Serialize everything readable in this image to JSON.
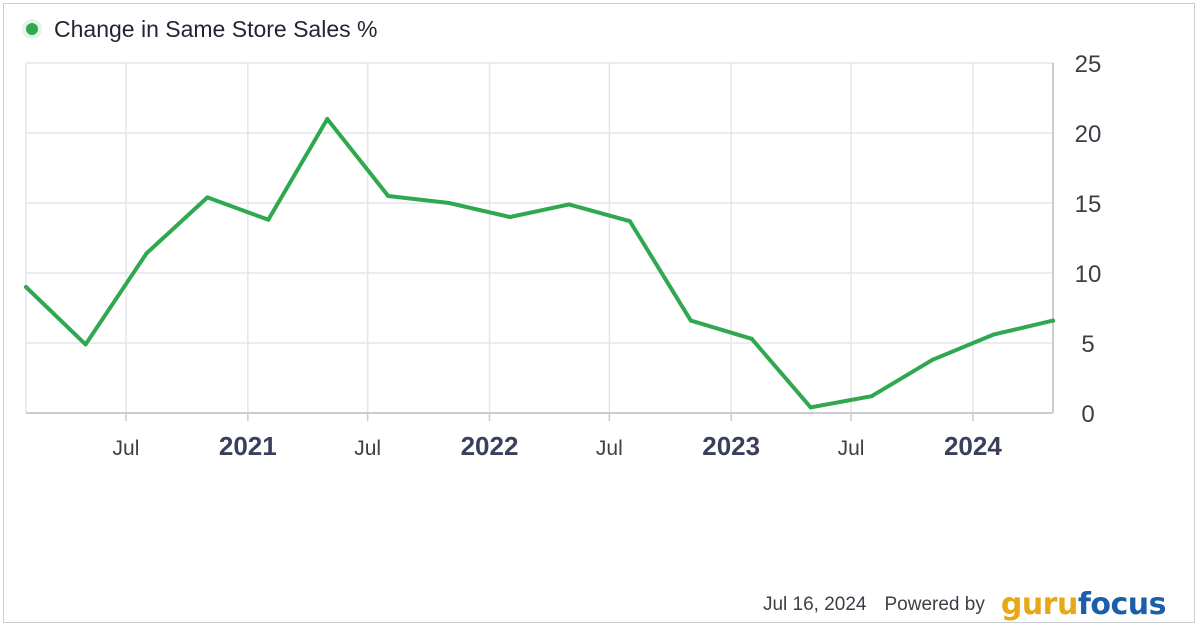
{
  "chart_data": {
    "type": "line",
    "series": [
      {
        "name": "Change in Same Store Sales %",
        "color": "#2fa84f",
        "points": [
          {
            "x": "2020-02-01",
            "y": 9.0
          },
          {
            "x": "2020-05-01",
            "y": 4.9
          },
          {
            "x": "2020-08-01",
            "y": 11.4
          },
          {
            "x": "2020-11-01",
            "y": 15.4
          },
          {
            "x": "2021-02-01",
            "y": 13.8
          },
          {
            "x": "2021-05-01",
            "y": 21.0
          },
          {
            "x": "2021-08-01",
            "y": 15.5
          },
          {
            "x": "2021-11-01",
            "y": 15.0
          },
          {
            "x": "2022-02-01",
            "y": 14.0
          },
          {
            "x": "2022-05-01",
            "y": 14.9
          },
          {
            "x": "2022-08-01",
            "y": 13.7
          },
          {
            "x": "2022-11-01",
            "y": 6.6
          },
          {
            "x": "2023-02-01",
            "y": 5.3
          },
          {
            "x": "2023-05-01",
            "y": 0.4
          },
          {
            "x": "2023-08-01",
            "y": 1.2
          },
          {
            "x": "2023-11-01",
            "y": 3.8
          },
          {
            "x": "2024-02-01",
            "y": 5.6
          },
          {
            "x": "2024-05-01",
            "y": 6.6
          }
        ]
      }
    ],
    "x_ticks": [
      {
        "date": "2020-07-01",
        "label": "Jul",
        "major": false
      },
      {
        "date": "2021-01-01",
        "label": "2021",
        "major": true
      },
      {
        "date": "2021-07-01",
        "label": "Jul",
        "major": false
      },
      {
        "date": "2022-01-01",
        "label": "2022",
        "major": true
      },
      {
        "date": "2022-07-01",
        "label": "Jul",
        "major": false
      },
      {
        "date": "2023-01-01",
        "label": "2023",
        "major": true
      },
      {
        "date": "2023-07-01",
        "label": "Jul",
        "major": false
      },
      {
        "date": "2024-01-01",
        "label": "2024",
        "major": true
      }
    ],
    "xlim": [
      "2020-02-01",
      "2024-05-01"
    ],
    "ylim": [
      0,
      25
    ],
    "y_ticks": [
      0,
      5,
      10,
      15,
      20,
      25
    ],
    "y_axis_side": "right",
    "grid": true,
    "legend_position": "top-left",
    "axis_color": "#c9ccd1",
    "grid_color": "#e3e6ea"
  },
  "footer": {
    "date": "Jul 16, 2024",
    "powered_by": "Powered by",
    "logo_part1": "guru",
    "logo_part2": "focus"
  }
}
